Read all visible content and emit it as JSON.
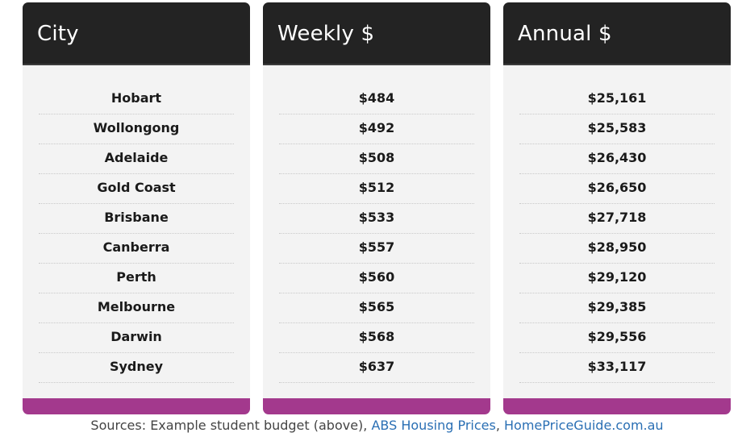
{
  "columns": [
    {
      "title": "City"
    },
    {
      "title": "Weekly $"
    },
    {
      "title": "Annual $"
    }
  ],
  "rows": [
    {
      "city": "Hobart",
      "weekly": "$484",
      "annual": "$25,161"
    },
    {
      "city": "Wollongong",
      "weekly": "$492",
      "annual": "$25,583"
    },
    {
      "city": "Adelaide",
      "weekly": "$508",
      "annual": "$26,430"
    },
    {
      "city": "Gold Coast",
      "weekly": "$512",
      "annual": "$26,650"
    },
    {
      "city": "Brisbane",
      "weekly": "$533",
      "annual": "$27,718"
    },
    {
      "city": "Canberra",
      "weekly": "$557",
      "annual": "$28,950"
    },
    {
      "city": "Perth",
      "weekly": "$560",
      "annual": "$29,120"
    },
    {
      "city": "Melbourne",
      "weekly": "$565",
      "annual": "$29,385"
    },
    {
      "city": "Darwin",
      "weekly": "$568",
      "annual": "$29,556"
    },
    {
      "city": "Sydney",
      "weekly": "$637",
      "annual": "$33,117"
    }
  ],
  "sources": {
    "prefix": "Sources: Example student budget (above), ",
    "separator": ", ",
    "links": [
      "ABS Housing Prices",
      "HomePriceGuide.com.au"
    ]
  },
  "colors": {
    "header_bg": "#232323",
    "body_bg": "#f3f3f3",
    "footer_accent": "#a3398d",
    "link": "#2a6fb4"
  }
}
